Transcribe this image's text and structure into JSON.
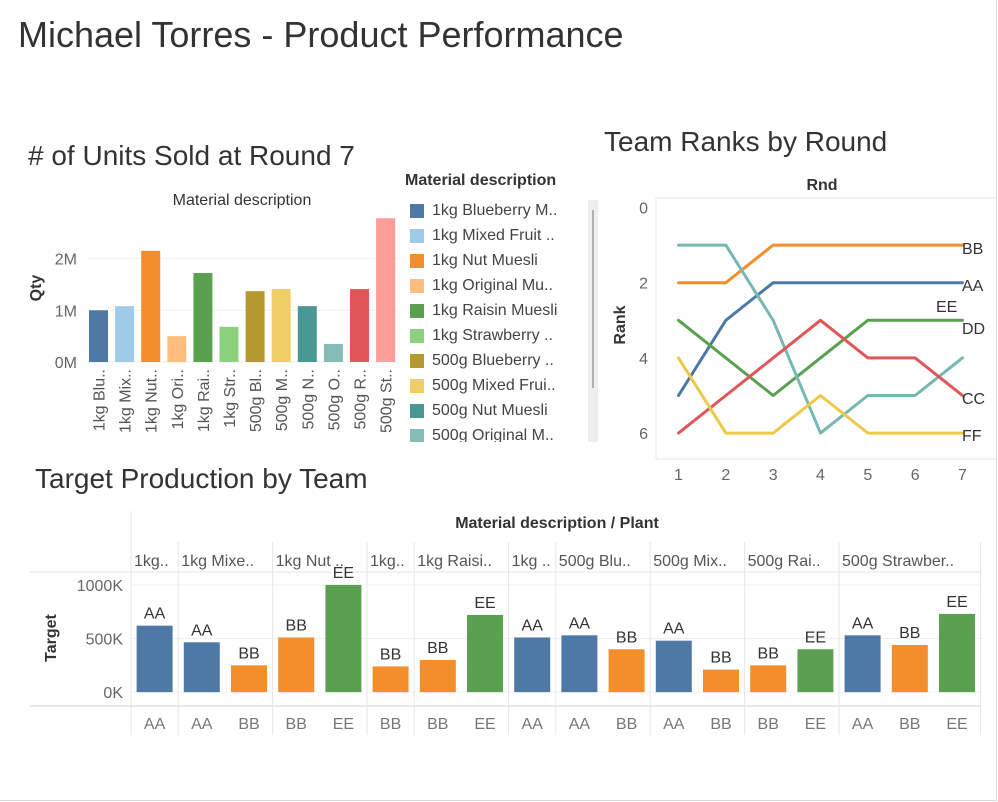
{
  "dashboard": {
    "title": "Michael Torres - Product Performance"
  },
  "units_sheet": {
    "title": "# of Units Sold at Round 7",
    "header": "Material description",
    "ylabel": "Qty",
    "y_ticks": [
      "0M",
      "1M",
      "2M"
    ]
  },
  "legend": {
    "title": "Material description",
    "items": [
      {
        "label": "1kg Blueberry M..",
        "color": "#4e79a7"
      },
      {
        "label": "1kg Mixed Fruit ..",
        "color": "#a0cbe8"
      },
      {
        "label": "1kg Nut Muesli",
        "color": "#f28e2b"
      },
      {
        "label": "1kg Original Mu..",
        "color": "#ffbe7d"
      },
      {
        "label": "1kg Raisin Muesli",
        "color": "#59a14f"
      },
      {
        "label": "1kg Strawberry ..",
        "color": "#8cd17d"
      },
      {
        "label": "500g Blueberry ..",
        "color": "#b6992d"
      },
      {
        "label": "500g Mixed Frui..",
        "color": "#f1ce63"
      },
      {
        "label": "500g Nut Muesli",
        "color": "#499894"
      },
      {
        "label": "500g Original M..",
        "color": "#86bcb6"
      }
    ]
  },
  "ranks_sheet": {
    "title": "Team Ranks by Round",
    "header": "Rnd",
    "ylabel": "Rank"
  },
  "target_sheet": {
    "title": "Target Production by Team",
    "header": "Material description / Plant",
    "ylabel": "Target"
  },
  "chart_data": [
    {
      "type": "bar",
      "title": "# of Units Sold at Round 7",
      "xlabel": "Material description",
      "ylabel": "Qty",
      "categories": [
        "1kg Blu..",
        "1kg Mix..",
        "1kg Nut..",
        "1kg Ori..",
        "1kg Rai..",
        "1kg Str..",
        "500g Bl..",
        "500g M..",
        "500g N..",
        "500g O..",
        "500g R..",
        "500g St.."
      ],
      "values": [
        1000000,
        1080000,
        2150000,
        500000,
        1720000,
        680000,
        1370000,
        1410000,
        1080000,
        350000,
        1410000,
        2780000
      ],
      "colors": [
        "#4e79a7",
        "#a0cbe8",
        "#f28e2b",
        "#ffbe7d",
        "#59a14f",
        "#8cd17d",
        "#b6992d",
        "#f1ce63",
        "#499894",
        "#86bcb6",
        "#e15759",
        "#ff9d9a"
      ],
      "ylim": [
        0,
        2900000
      ],
      "y_tick_values": [
        0,
        1000000,
        2000000
      ]
    },
    {
      "type": "line",
      "title": "Team Ranks by Round",
      "xlabel": "Rnd",
      "ylabel": "Rank",
      "x": [
        1,
        2,
        3,
        4,
        5,
        6,
        7
      ],
      "y_ticks": [
        0,
        2,
        4,
        6
      ],
      "ylim": [
        0,
        6.6
      ],
      "y_reversed": true,
      "series": [
        {
          "name": "BB",
          "color": "#f28e2b",
          "values": [
            2,
            2,
            1,
            1,
            1,
            1,
            1
          ]
        },
        {
          "name": "AA",
          "color": "#4e79a7",
          "values": [
            5,
            3,
            2,
            2,
            2,
            2,
            2
          ]
        },
        {
          "name": "EE",
          "color": "#59a14f",
          "values": [
            3,
            4,
            5,
            4,
            3,
            3,
            3
          ]
        },
        {
          "name": "DD",
          "color": "#76b7b2",
          "values": [
            1,
            1,
            3,
            6,
            5,
            5,
            4
          ]
        },
        {
          "name": "CC",
          "color": "#e15759",
          "values": [
            6,
            5,
            4,
            3,
            4,
            4,
            5
          ]
        },
        {
          "name": "FF",
          "color": "#edc948",
          "values": [
            4,
            6,
            6,
            5,
            6,
            6,
            6
          ]
        }
      ]
    },
    {
      "type": "bar",
      "title": "Target Production by Team",
      "xlabel": "Material description / Plant",
      "ylabel": "Target",
      "y_ticks": [
        "0K",
        "500K",
        "1000K"
      ],
      "y_tick_values": [
        0,
        500000,
        1000000
      ],
      "ylim": [
        -120000,
        1130000
      ],
      "team_colors": {
        "AA": "#4e79a7",
        "BB": "#f28e2b",
        "EE": "#59a14f"
      },
      "groups": [
        {
          "label": "1kg..",
          "bars": [
            {
              "team": "AA",
              "value": 620000
            }
          ]
        },
        {
          "label": "1kg Mixe..",
          "bars": [
            {
              "team": "AA",
              "value": 465000
            },
            {
              "team": "BB",
              "value": 250000
            }
          ]
        },
        {
          "label": "1kg Nut ..",
          "bars": [
            {
              "team": "BB",
              "value": 510000
            },
            {
              "team": "EE",
              "value": 1000000
            }
          ]
        },
        {
          "label": "1kg..",
          "bars": [
            {
              "team": "BB",
              "value": 240000
            }
          ]
        },
        {
          "label": "1kg Raisi..",
          "bars": [
            {
              "team": "BB",
              "value": 300000
            },
            {
              "team": "EE",
              "value": 720000
            }
          ]
        },
        {
          "label": "1kg ..",
          "bars": [
            {
              "team": "AA",
              "value": 510000
            }
          ]
        },
        {
          "label": "500g Blu..",
          "bars": [
            {
              "team": "AA",
              "value": 530000
            },
            {
              "team": "BB",
              "value": 400000
            }
          ]
        },
        {
          "label": "500g Mix..",
          "bars": [
            {
              "team": "AA",
              "value": 480000
            },
            {
              "team": "BB",
              "value": 210000
            }
          ]
        },
        {
          "label": "500g Rai..",
          "bars": [
            {
              "team": "BB",
              "value": 250000
            },
            {
              "team": "EE",
              "value": 400000
            }
          ]
        },
        {
          "label": "500g Strawber..",
          "bars": [
            {
              "team": "AA",
              "value": 530000
            },
            {
              "team": "BB",
              "value": 440000
            },
            {
              "team": "EE",
              "value": 730000
            }
          ]
        }
      ]
    }
  ]
}
